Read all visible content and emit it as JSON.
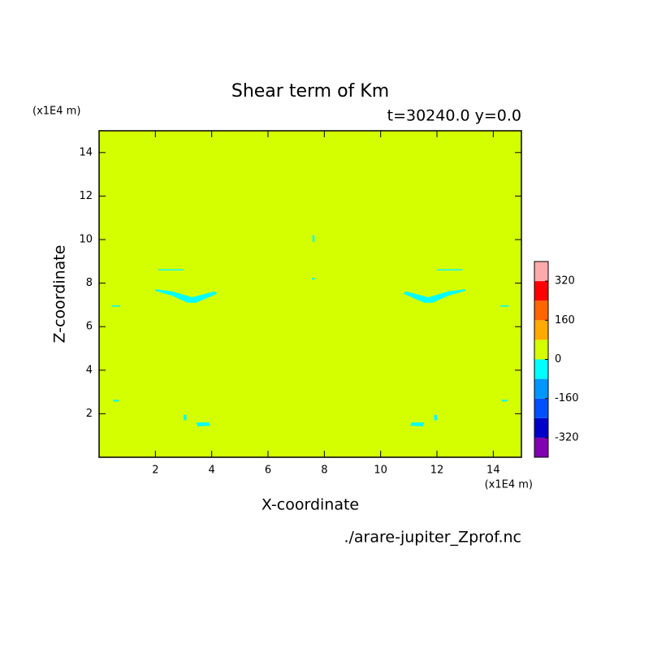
{
  "chart_data": {
    "type": "contour",
    "title": "Shear term of Km",
    "subtitle": "t=30240.0 y=0.0",
    "x_label": "X-coordinate",
    "y_label": "Z-coordinate",
    "x_unit": "(x1E4 m)",
    "y_unit": "(x1E4 m)",
    "source": "./arare-jupiter_Zprof.nc",
    "xlim": [
      0,
      15
    ],
    "ylim": [
      0,
      15
    ],
    "xticks": [
      2,
      4,
      6,
      8,
      10,
      12,
      14
    ],
    "yticks": [
      2,
      4,
      6,
      8,
      10,
      12,
      14
    ],
    "levels": [
      -400,
      -320,
      -240,
      -160,
      -80,
      0,
      80,
      160,
      240,
      320,
      400
    ],
    "colors": [
      "#8000b0",
      "#0000c8",
      "#0050ff",
      "#0096ff",
      "#00ffff",
      "#d4ff00",
      "#ffaa00",
      "#ff6400",
      "#ff0000",
      "#ffaaaa"
    ],
    "colorbar_ticks": [
      -320,
      -160,
      0,
      160,
      320
    ],
    "background_value": 40,
    "regions": [
      {
        "value": -40,
        "points": [
          [
            2.0,
            7.72
          ],
          [
            2.6,
            7.62
          ],
          [
            3.3,
            7.35
          ],
          [
            4.1,
            7.62
          ],
          [
            4.2,
            7.52
          ],
          [
            3.45,
            7.1
          ],
          [
            3.15,
            7.1
          ],
          [
            2.6,
            7.42
          ],
          [
            2.0,
            7.64
          ]
        ]
      },
      {
        "value": -40,
        "points": [
          [
            13.0,
            7.72
          ],
          [
            12.4,
            7.62
          ],
          [
            11.7,
            7.35
          ],
          [
            10.9,
            7.62
          ],
          [
            10.8,
            7.52
          ],
          [
            11.55,
            7.1
          ],
          [
            11.85,
            7.1
          ],
          [
            12.4,
            7.42
          ],
          [
            13.0,
            7.64
          ]
        ]
      },
      {
        "value": -40,
        "points": [
          [
            2.1,
            8.64
          ],
          [
            3.0,
            8.64
          ],
          [
            3.0,
            8.58
          ],
          [
            2.1,
            8.58
          ]
        ]
      },
      {
        "value": -40,
        "points": [
          [
            12.0,
            8.64
          ],
          [
            12.9,
            8.64
          ],
          [
            12.9,
            8.58
          ],
          [
            12.0,
            8.58
          ]
        ]
      },
      {
        "value": -40,
        "points": [
          [
            3.45,
            1.6
          ],
          [
            3.9,
            1.6
          ],
          [
            3.95,
            1.45
          ],
          [
            3.5,
            1.42
          ]
        ]
      },
      {
        "value": -40,
        "points": [
          [
            11.55,
            1.6
          ],
          [
            11.1,
            1.6
          ],
          [
            11.05,
            1.45
          ],
          [
            11.5,
            1.42
          ]
        ]
      },
      {
        "value": -40,
        "points": [
          [
            3.0,
            1.95
          ],
          [
            3.1,
            1.95
          ],
          [
            3.1,
            1.7
          ],
          [
            3.0,
            1.7
          ]
        ]
      },
      {
        "value": -40,
        "points": [
          [
            12.0,
            1.95
          ],
          [
            11.9,
            1.95
          ],
          [
            11.9,
            1.7
          ],
          [
            12.0,
            1.7
          ]
        ]
      },
      {
        "value": -40,
        "points": [
          [
            0.45,
            6.98
          ],
          [
            0.75,
            6.98
          ],
          [
            0.75,
            6.92
          ],
          [
            0.45,
            6.92
          ]
        ]
      },
      {
        "value": -40,
        "points": [
          [
            14.55,
            6.98
          ],
          [
            14.25,
            6.98
          ],
          [
            14.25,
            6.92
          ],
          [
            14.55,
            6.92
          ]
        ]
      },
      {
        "value": -40,
        "points": [
          [
            0.5,
            2.64
          ],
          [
            0.7,
            2.64
          ],
          [
            0.7,
            2.56
          ],
          [
            0.5,
            2.56
          ]
        ]
      },
      {
        "value": -40,
        "points": [
          [
            14.5,
            2.64
          ],
          [
            14.3,
            2.64
          ],
          [
            14.3,
            2.56
          ],
          [
            14.5,
            2.56
          ]
        ]
      },
      {
        "value": -40,
        "points": [
          [
            7.58,
            10.2
          ],
          [
            7.65,
            10.2
          ],
          [
            7.65,
            9.9
          ],
          [
            7.58,
            9.9
          ]
        ]
      },
      {
        "value": -40,
        "points": [
          [
            7.56,
            8.24
          ],
          [
            7.66,
            8.24
          ],
          [
            7.66,
            8.16
          ],
          [
            7.56,
            8.16
          ]
        ]
      }
    ]
  }
}
